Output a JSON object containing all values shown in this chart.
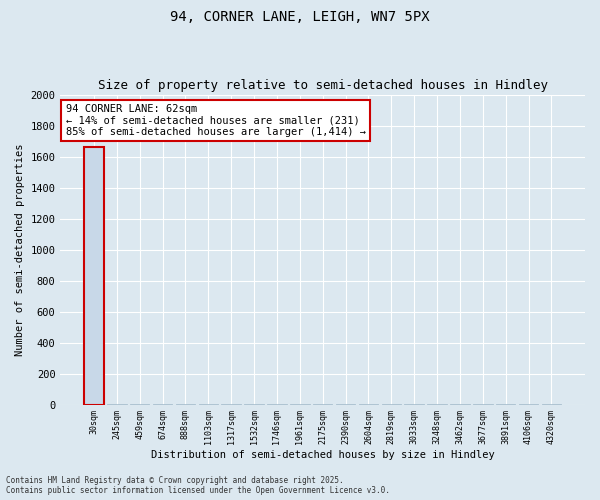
{
  "title1": "94, CORNER LANE, LEIGH, WN7 5PX",
  "title2": "Size of property relative to semi-detached houses in Hindley",
  "xlabel": "Distribution of semi-detached houses by size in Hindley",
  "ylabel": "Number of semi-detached properties",
  "annotation_title": "94 CORNER LANE: 62sqm",
  "annotation_line2": "← 14% of semi-detached houses are smaller (231)",
  "annotation_line3": "85% of semi-detached houses are larger (1,414) →",
  "footer1": "Contains HM Land Registry data © Crown copyright and database right 2025.",
  "footer2": "Contains public sector information licensed under the Open Government Licence v3.0.",
  "categories": [
    "30sqm",
    "245sqm",
    "459sqm",
    "674sqm",
    "888sqm",
    "1103sqm",
    "1317sqm",
    "1532sqm",
    "1746sqm",
    "1961sqm",
    "2175sqm",
    "2390sqm",
    "2604sqm",
    "2819sqm",
    "3033sqm",
    "3248sqm",
    "3462sqm",
    "3677sqm",
    "3891sqm",
    "4106sqm",
    "4320sqm"
  ],
  "values": [
    1660,
    5,
    3,
    2,
    1,
    1,
    1,
    1,
    1,
    1,
    1,
    1,
    1,
    1,
    1,
    1,
    1,
    1,
    1,
    1,
    1
  ],
  "bar_color": "#c8d8e8",
  "subject_bin_index": 0,
  "ylim": [
    0,
    2000
  ],
  "yticks": [
    0,
    200,
    400,
    600,
    800,
    1000,
    1200,
    1400,
    1600,
    1800,
    2000
  ],
  "bg_color": "#dce8f0",
  "plot_bg_color": "#dce8f0",
  "grid_color": "#ffffff",
  "bar_edge_color": "#a0b8c8",
  "annotation_box_edge": "#cc0000",
  "annotation_box_face": "#ffffff",
  "title1_fontsize": 10,
  "title2_fontsize": 9
}
